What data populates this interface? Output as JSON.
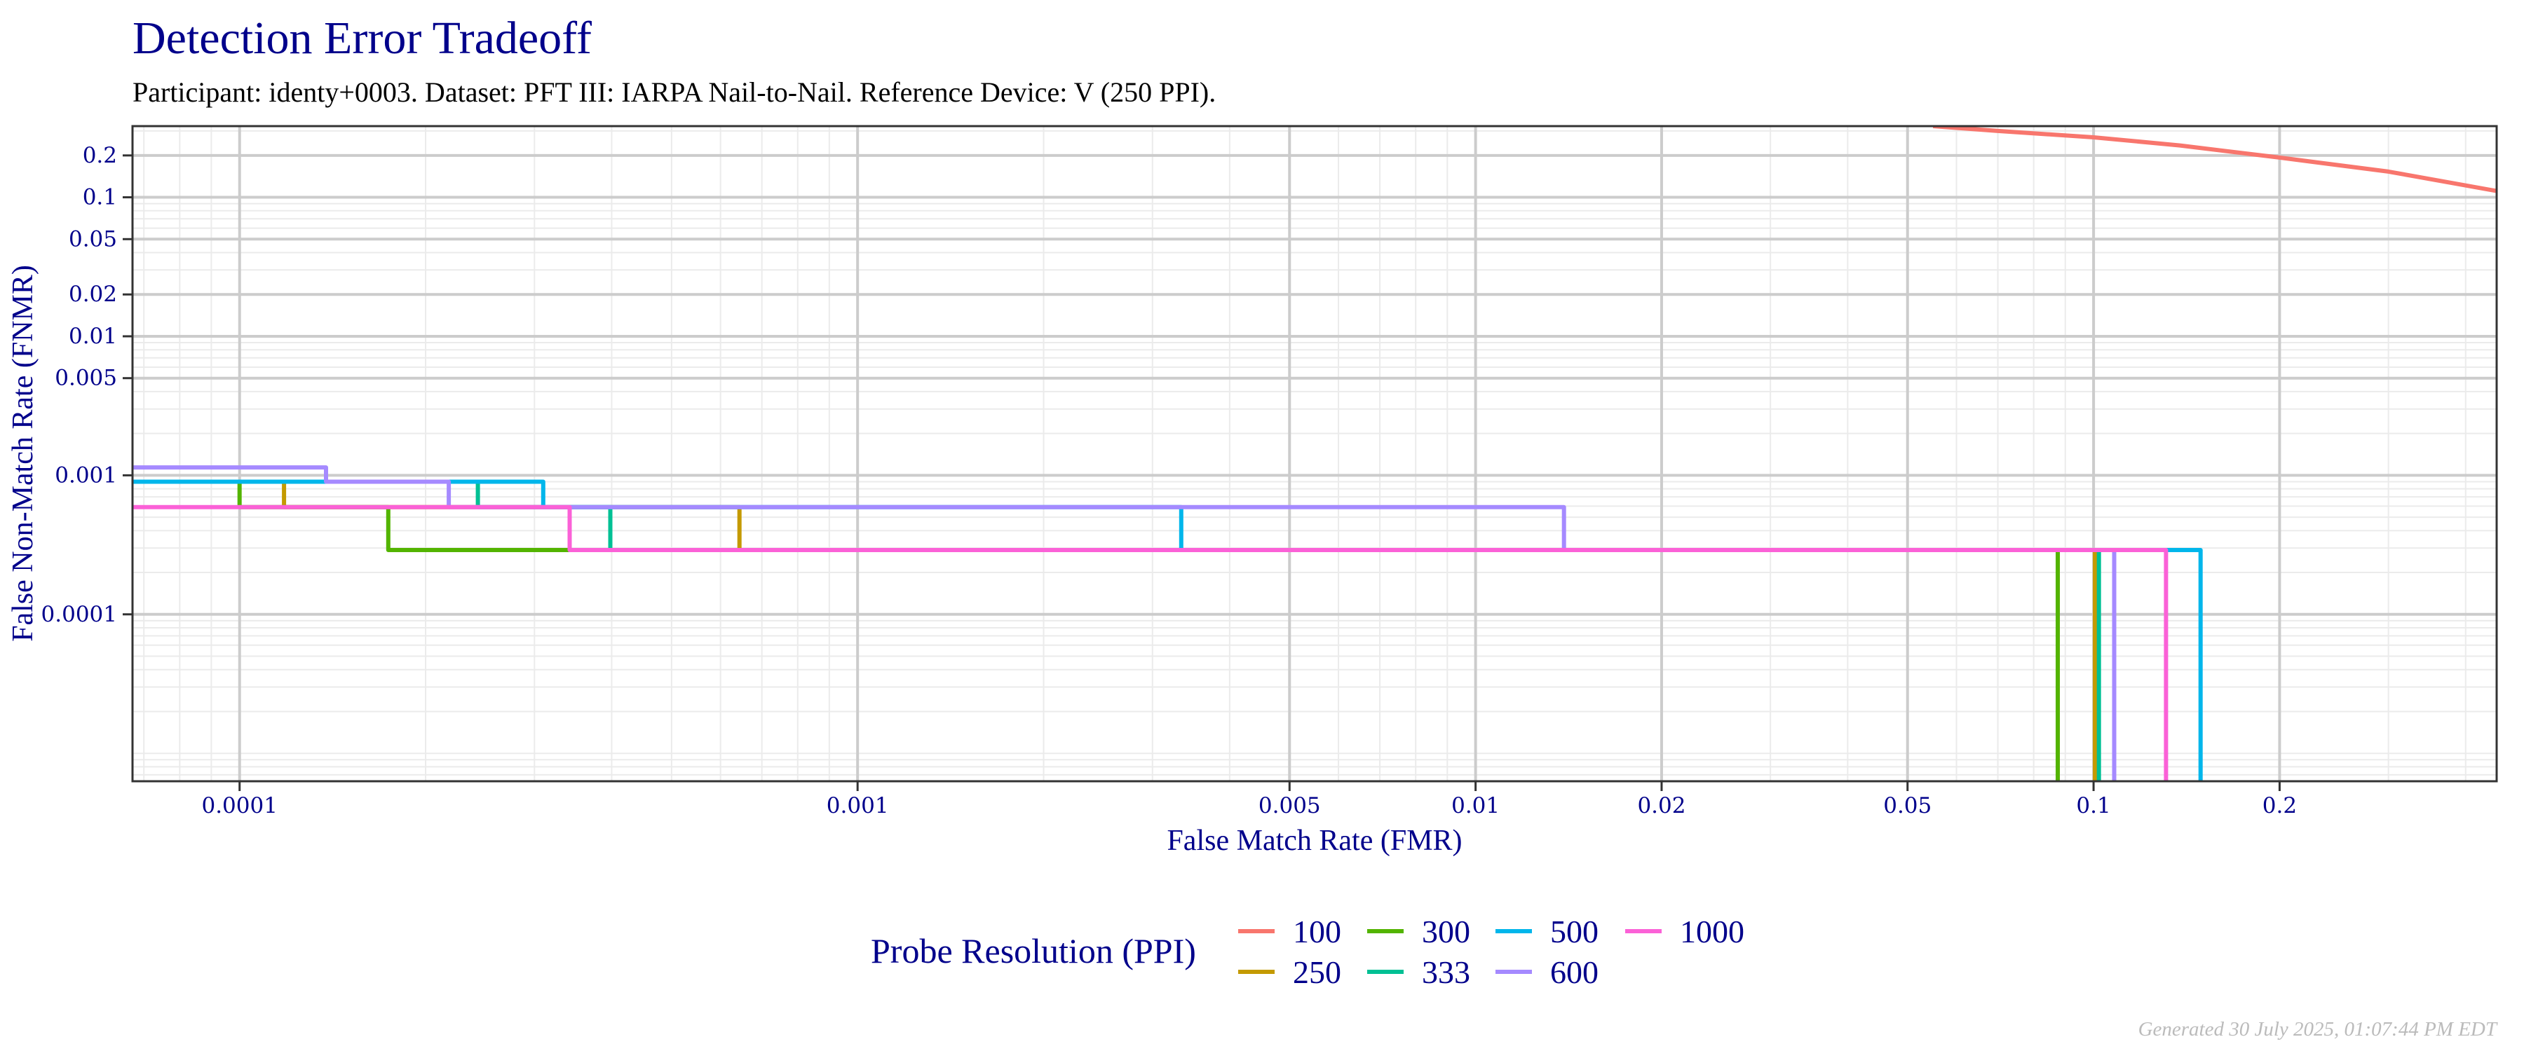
{
  "chart_data": {
    "type": "line",
    "title": "Detection Error Tradeoff",
    "subtitle": "Participant: identy+0003. Dataset: PFT III: IARPA Nail-to-Nail. Reference Device: V (250 PPI).",
    "xlabel": "False Match Rate (FMR)",
    "ylabel": "False Non-Match Rate (FNMR)",
    "xscale": "log10",
    "yscale": "log10",
    "xlim": [
      6.71e-05,
      0.449
    ],
    "ylim": [
      6.3e-06,
      0.325
    ],
    "grid": true,
    "x_ticks": [
      {
        "value": 0.0001,
        "label": "0.0001"
      },
      {
        "value": 0.001,
        "label": "0.001"
      },
      {
        "value": 0.005,
        "label": "0.005"
      },
      {
        "value": 0.01,
        "label": "0.01"
      },
      {
        "value": 0.02,
        "label": "0.02"
      },
      {
        "value": 0.05,
        "label": "0.05"
      },
      {
        "value": 0.1,
        "label": "0.1"
      },
      {
        "value": 0.2,
        "label": "0.2"
      }
    ],
    "y_ticks": [
      {
        "value": 0.2,
        "label": "0.2"
      },
      {
        "value": 0.1,
        "label": "0.1"
      },
      {
        "value": 0.05,
        "label": "0.05"
      },
      {
        "value": 0.02,
        "label": "0.02"
      },
      {
        "value": 0.01,
        "label": "0.01"
      },
      {
        "value": 0.005,
        "label": "0.005"
      },
      {
        "value": 0.001,
        "label": "0.001"
      },
      {
        "value": 0.0001,
        "label": "0.0001"
      }
    ],
    "legend": {
      "title": "Probe Resolution (PPI)",
      "placement": "bottom"
    },
    "series": [
      {
        "name": "100",
        "color": "#F8766D",
        "points": [
          [
            0.055,
            0.325
          ],
          [
            0.07,
            0.3
          ],
          [
            0.1,
            0.27
          ],
          [
            0.138,
            0.236
          ],
          [
            0.2,
            0.193
          ],
          [
            0.3,
            0.153
          ],
          [
            0.449,
            0.111
          ]
        ]
      },
      {
        "name": "250",
        "color": "#C49A00",
        "points": [
          [
            6.71e-05,
            0.0009
          ],
          [
            0.000118,
            0.0009
          ],
          [
            0.000118,
            0.00059
          ],
          [
            0.000644,
            0.00059
          ],
          [
            0.000644,
            0.00029
          ],
          [
            0.1005,
            0.00029
          ],
          [
            0.1005,
            6.3e-06
          ]
        ]
      },
      {
        "name": "300",
        "color": "#53B400",
        "points": [
          [
            6.71e-05,
            0.0009
          ],
          [
            0.0001,
            0.0009
          ],
          [
            0.0001,
            0.00059
          ],
          [
            0.000174,
            0.00059
          ],
          [
            0.000174,
            0.00029
          ],
          [
            0.0875,
            0.00029
          ],
          [
            0.0875,
            6.3e-06
          ]
        ]
      },
      {
        "name": "333",
        "color": "#00C094",
        "points": [
          [
            6.71e-05,
            0.0009
          ],
          [
            0.000243,
            0.0009
          ],
          [
            0.000243,
            0.00059
          ],
          [
            0.000398,
            0.00059
          ],
          [
            0.000398,
            0.00029
          ],
          [
            0.102,
            0.00029
          ],
          [
            0.102,
            6.3e-06
          ]
        ]
      },
      {
        "name": "500",
        "color": "#00B6EB",
        "points": [
          [
            6.71e-05,
            0.0009
          ],
          [
            0.00031,
            0.0009
          ],
          [
            0.00031,
            0.00059
          ],
          [
            0.00334,
            0.00059
          ],
          [
            0.00334,
            0.00029
          ],
          [
            0.149,
            0.00029
          ],
          [
            0.149,
            6.3e-06
          ]
        ]
      },
      {
        "name": "600",
        "color": "#A58AFF",
        "points": [
          [
            6.71e-05,
            0.00114
          ],
          [
            0.000138,
            0.00114
          ],
          [
            0.000138,
            0.0009
          ],
          [
            0.000218,
            0.0009
          ],
          [
            0.000218,
            0.00059
          ],
          [
            0.0139,
            0.00059
          ],
          [
            0.0139,
            0.00029
          ],
          [
            0.108,
            0.00029
          ],
          [
            0.108,
            6.3e-06
          ]
        ]
      },
      {
        "name": "1000",
        "color": "#FB61D7",
        "points": [
          [
            6.71e-05,
            0.00059
          ],
          [
            0.000342,
            0.00059
          ],
          [
            0.000342,
            0.00029
          ],
          [
            0.131,
            0.00029
          ],
          [
            0.131,
            6.3e-06
          ]
        ]
      }
    ],
    "footer": "Generated 30 July 2025, 01:07:44 PM EDT"
  },
  "colors": {
    "text": "#00008B",
    "major_grid": "#cccccc",
    "minor_grid": "#ebebeb",
    "border": "#333333"
  }
}
